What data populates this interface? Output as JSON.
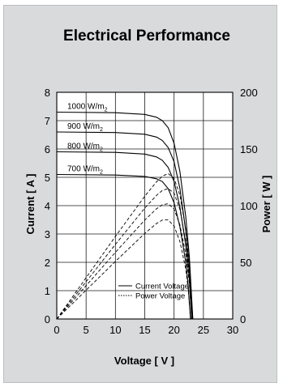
{
  "chart_data": {
    "type": "line",
    "title": "Electrical Performance",
    "xlabel": "Voltage [ V ]",
    "ylabel_left": "Current [ A ]",
    "ylabel_right": "Power [ W ]",
    "xlim": [
      0,
      30
    ],
    "ylim_left": [
      0,
      8
    ],
    "ylim_right": [
      0,
      200
    ],
    "xticks": [
      "0",
      "5",
      "10",
      "15",
      "20",
      "25",
      "30"
    ],
    "yticks_left": [
      "0",
      "1",
      "2",
      "3",
      "4",
      "5",
      "6",
      "7",
      "8"
    ],
    "yticks_right": [
      "0",
      "50",
      "100",
      "150",
      "200"
    ],
    "grid": true,
    "legend": {
      "placement": "bottom-right",
      "entries": [
        {
          "label": "Current Voltage",
          "style": "solid"
        },
        {
          "label": "Power Voltage",
          "style": "dotted"
        }
      ]
    },
    "iv_series": [
      {
        "label": "1000 W/m",
        "sub": "2",
        "isc": 7.3,
        "voc": 23.2,
        "points": [
          [
            0,
            7.3
          ],
          [
            10,
            7.28
          ],
          [
            15,
            7.22
          ],
          [
            17,
            7.12
          ],
          [
            18,
            7.0
          ],
          [
            19,
            6.75
          ],
          [
            20,
            6.2
          ],
          [
            21,
            5.2
          ],
          [
            22,
            3.6
          ],
          [
            22.6,
            2.2
          ],
          [
            23.2,
            0
          ]
        ]
      },
      {
        "label": "900 W/m",
        "sub": "2",
        "isc": 6.6,
        "voc": 23.1,
        "points": [
          [
            0,
            6.6
          ],
          [
            10,
            6.58
          ],
          [
            15,
            6.52
          ],
          [
            17,
            6.42
          ],
          [
            18,
            6.3
          ],
          [
            19,
            6.05
          ],
          [
            20,
            5.55
          ],
          [
            21,
            4.6
          ],
          [
            22,
            3.1
          ],
          [
            22.6,
            1.8
          ],
          [
            23.1,
            0
          ]
        ]
      },
      {
        "label": "800 W/m",
        "sub": "2",
        "isc": 5.9,
        "voc": 23.0,
        "points": [
          [
            0,
            5.9
          ],
          [
            10,
            5.88
          ],
          [
            15,
            5.82
          ],
          [
            17,
            5.72
          ],
          [
            18,
            5.6
          ],
          [
            19,
            5.35
          ],
          [
            20,
            4.85
          ],
          [
            21,
            3.95
          ],
          [
            22,
            2.6
          ],
          [
            22.6,
            1.4
          ],
          [
            23.0,
            0
          ]
        ]
      },
      {
        "label": "700 W/m",
        "sub": "2",
        "isc": 5.1,
        "voc": 22.8,
        "points": [
          [
            0,
            5.1
          ],
          [
            10,
            5.08
          ],
          [
            15,
            5.03
          ],
          [
            17,
            4.95
          ],
          [
            18,
            4.85
          ],
          [
            19,
            4.6
          ],
          [
            20,
            4.1
          ],
          [
            21,
            3.25
          ],
          [
            22,
            2.0
          ],
          [
            22.4,
            1.2
          ],
          [
            22.8,
            0
          ]
        ]
      }
    ],
    "power_series": [
      {
        "irradiance": "1000 W/m2",
        "points": [
          [
            0,
            0
          ],
          [
            5,
            36.4
          ],
          [
            10,
            72.8
          ],
          [
            15,
            108.3
          ],
          [
            17,
            121
          ],
          [
            18,
            126
          ],
          [
            19,
            128.3
          ],
          [
            20,
            124
          ],
          [
            21,
            109.2
          ],
          [
            22,
            79.2
          ],
          [
            22.6,
            49.7
          ],
          [
            23.2,
            0
          ]
        ]
      },
      {
        "irradiance": "900 W/m2",
        "points": [
          [
            0,
            0
          ],
          [
            5,
            32.9
          ],
          [
            10,
            65.8
          ],
          [
            15,
            97.8
          ],
          [
            17,
            109.1
          ],
          [
            18,
            113.4
          ],
          [
            19,
            115
          ],
          [
            20,
            111
          ],
          [
            21,
            96.6
          ],
          [
            22,
            68.2
          ],
          [
            22.6,
            40.7
          ],
          [
            23.1,
            0
          ]
        ]
      },
      {
        "irradiance": "800 W/m2",
        "points": [
          [
            0,
            0
          ],
          [
            5,
            29.4
          ],
          [
            10,
            58.8
          ],
          [
            15,
            87.3
          ],
          [
            17,
            97.2
          ],
          [
            18,
            100.8
          ],
          [
            19,
            101.7
          ],
          [
            20,
            97
          ],
          [
            21,
            83
          ],
          [
            22,
            57.2
          ],
          [
            22.6,
            31.6
          ],
          [
            23.0,
            0
          ]
        ]
      },
      {
        "irradiance": "700 W/m2",
        "points": [
          [
            0,
            0
          ],
          [
            5,
            25.4
          ],
          [
            10,
            50.8
          ],
          [
            15,
            75.5
          ],
          [
            17,
            84.2
          ],
          [
            18,
            87.3
          ],
          [
            19,
            87.4
          ],
          [
            20,
            82
          ],
          [
            21,
            68.3
          ],
          [
            22,
            44
          ],
          [
            22.4,
            26.9
          ],
          [
            22.8,
            0
          ]
        ]
      }
    ]
  }
}
